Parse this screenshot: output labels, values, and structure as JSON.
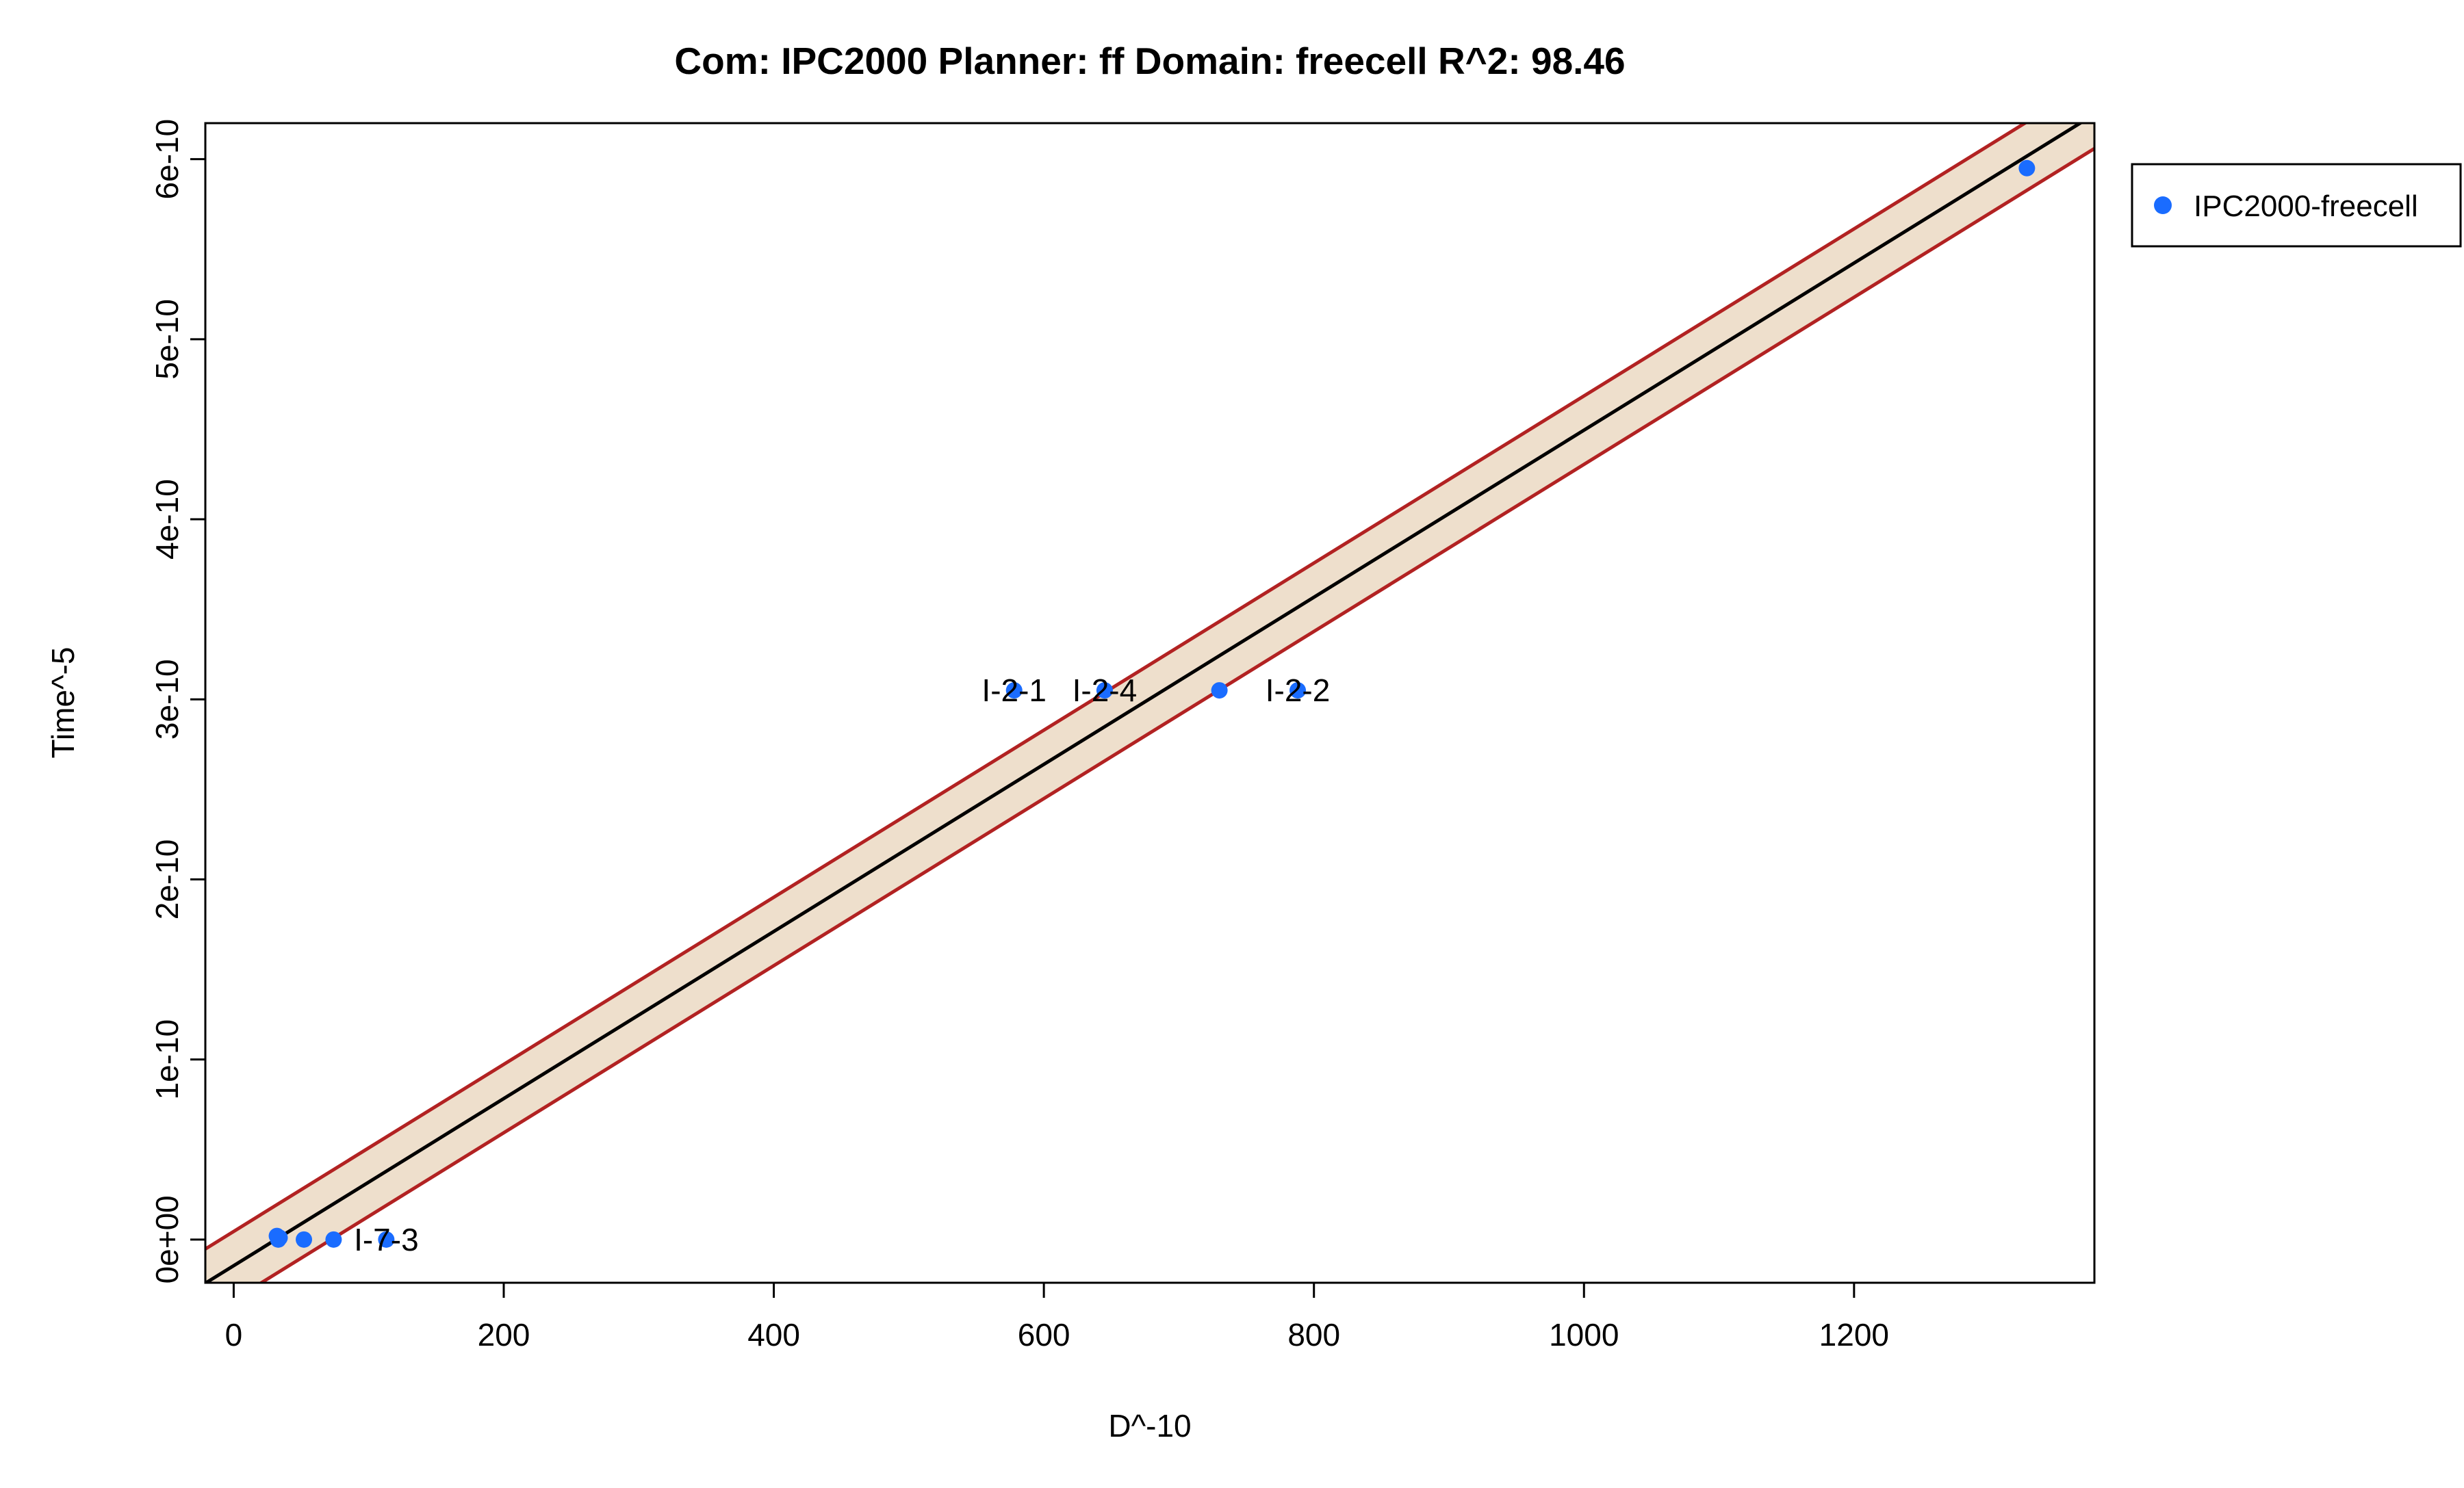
{
  "chart_data": {
    "type": "scatter",
    "title": "Com: IPC2000 Planner: ff Domain: freecell R^2: 98.46",
    "xlabel": "D^-10",
    "ylabel": "Time^-5",
    "xlim": [
      -21,
      1378
    ],
    "ylim": [
      -2.4e-11,
      6.2e-10
    ],
    "x_ticks": [
      0,
      200,
      400,
      600,
      800,
      1000,
      1200
    ],
    "x_tick_labels": [
      "0",
      "200",
      "400",
      "600",
      "800",
      "1000",
      "1200"
    ],
    "y_ticks": [
      0,
      1e-10,
      2e-10,
      3e-10,
      4e-10,
      5e-10,
      6e-10
    ],
    "y_tick_labels": [
      "0e+00",
      "1e-10",
      "2e-10",
      "3e-10",
      "4e-10",
      "5e-10",
      "6e-10"
    ],
    "grid": false,
    "legend": {
      "position": "right",
      "entries": [
        "IPC2000-freecell"
      ]
    },
    "series": [
      {
        "name": "IPC2000-freecell",
        "color": "#1a6cff",
        "points": [
          {
            "x": 32,
            "y": 2e-12
          },
          {
            "x": 33,
            "y": 0
          },
          {
            "x": 34,
            "y": 1e-12
          },
          {
            "x": 52,
            "y": 0
          },
          {
            "x": 74,
            "y": 0
          },
          {
            "x": 113,
            "y": 0
          },
          {
            "x": 578,
            "y": 3.05e-10
          },
          {
            "x": 645,
            "y": 3.05e-10
          },
          {
            "x": 730,
            "y": 3.05e-10
          },
          {
            "x": 788,
            "y": 3.05e-10
          },
          {
            "x": 1328,
            "y": 5.95e-10
          }
        ]
      }
    ],
    "point_labels": [
      {
        "text": "I-7-3",
        "x": 113,
        "y": 0
      },
      {
        "text": "I-2-1",
        "x": 578,
        "y": 3.05e-10
      },
      {
        "text": "I-2-4",
        "x": 645,
        "y": 3.05e-10
      },
      {
        "text": "I-2-2",
        "x": 788,
        "y": 3.05e-10
      }
    ],
    "fit_line": {
      "slope": 4.64e-13,
      "intercept": -1.45e-11,
      "color": "#000000"
    },
    "band": {
      "half_width": 1.9e-11,
      "fill_color": "#eedfcc",
      "edge_color": "#b22222"
    }
  }
}
